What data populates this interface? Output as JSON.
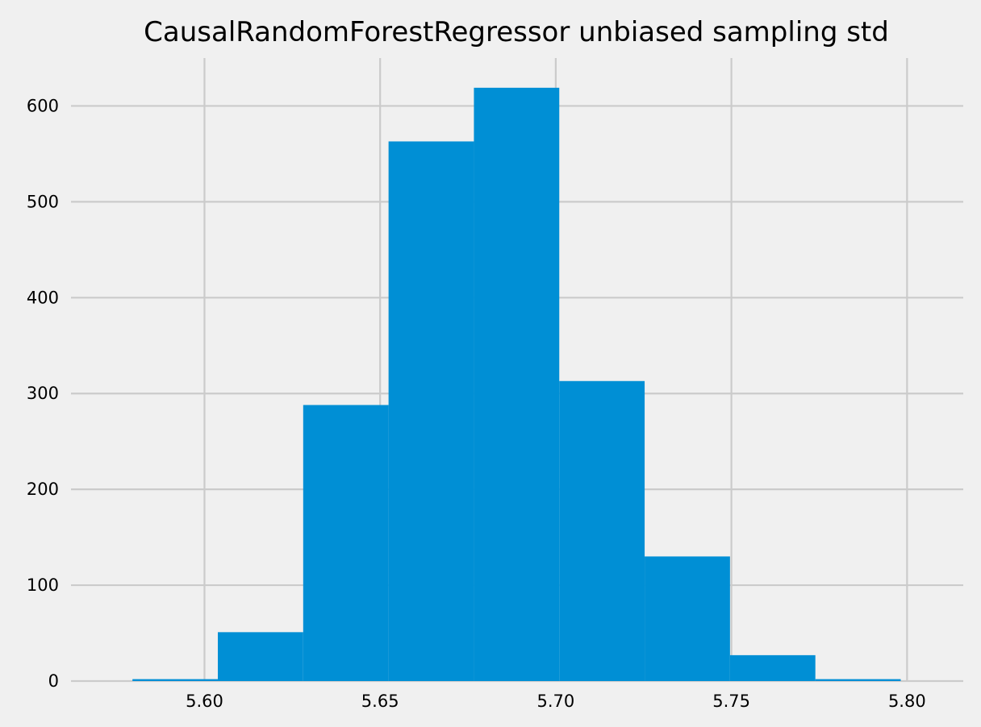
{
  "chart_data": {
    "type": "bar",
    "title": "CausalRandomForestRegressor unbiased sampling std",
    "xlabel": "",
    "ylabel": "",
    "bin_edges": [
      5.5795,
      5.6038,
      5.6281,
      5.6524,
      5.6767,
      5.701,
      5.7253,
      5.7496,
      5.7739,
      5.7982
    ],
    "values": [
      2,
      51,
      288,
      563,
      619,
      313,
      130,
      27,
      2
    ],
    "xlim": [
      5.562,
      5.816
    ],
    "ylim": [
      0,
      650
    ],
    "x_ticks": [
      5.6,
      5.65,
      5.7,
      5.75,
      5.8
    ],
    "x_tick_labels": [
      "5.60",
      "5.65",
      "5.70",
      "5.75",
      "5.80"
    ],
    "y_ticks": [
      0,
      100,
      200,
      300,
      400,
      500,
      600
    ],
    "y_tick_labels": [
      "0",
      "100",
      "200",
      "300",
      "400",
      "500",
      "600"
    ],
    "grid": true,
    "colors": {
      "bar": "#008fd5",
      "grid": "#cbcbcb",
      "background": "#f0f0f0"
    }
  }
}
